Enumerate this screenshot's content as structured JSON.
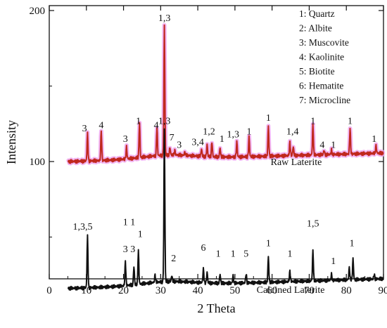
{
  "chart_data": {
    "type": "line",
    "xlabel": "2 Theta",
    "ylabel": "Intensity",
    "xlim": [
      0,
      90
    ],
    "xticks": [
      0,
      10,
      20,
      30,
      40,
      50,
      60,
      70,
      80,
      90
    ],
    "yticks_labeled": [
      100,
      200
    ],
    "legend_position": "top-right",
    "legend": [
      "1: Quartz",
      "2: Albite",
      "3: Muscovite",
      "4: Kaolinite",
      "5: Biotite",
      "6: Hematite",
      "7: Microcline"
    ],
    "series": [
      {
        "name": "Raw Laterite",
        "color": "#c0281e",
        "halo": "#f0a8f0",
        "baseline": 100,
        "end_level": 107,
        "peaks": [
          {
            "x": 10.3,
            "h": 18
          },
          {
            "x": 14.0,
            "h": 20
          },
          {
            "x": 20.8,
            "h": 8
          },
          {
            "x": 24.3,
            "h": 23
          },
          {
            "x": 29.0,
            "h": 19
          },
          {
            "x": 31.0,
            "h": 86
          },
          {
            "x": 32.5,
            "h": 5
          },
          {
            "x": 33.8,
            "h": 3
          },
          {
            "x": 36.5,
            "h": 2
          },
          {
            "x": 41.0,
            "h": 5
          },
          {
            "x": 42.5,
            "h": 8
          },
          {
            "x": 43.8,
            "h": 10
          },
          {
            "x": 46.0,
            "h": 6
          },
          {
            "x": 50.5,
            "h": 10
          },
          {
            "x": 53.8,
            "h": 13
          },
          {
            "x": 59.0,
            "h": 20
          },
          {
            "x": 64.8,
            "h": 9
          },
          {
            "x": 65.7,
            "h": 6
          },
          {
            "x": 71.0,
            "h": 20
          },
          {
            "x": 74.0,
            "h": 3
          },
          {
            "x": 76.0,
            "h": 3
          },
          {
            "x": 81.0,
            "h": 17
          },
          {
            "x": 88.0,
            "h": 5
          }
        ],
        "series_label": "Raw Laterite",
        "peak_labels": [
          {
            "x": 9.5,
            "y": 120,
            "text": "3"
          },
          {
            "x": 14.0,
            "y": 122,
            "text": "4"
          },
          {
            "x": 20.5,
            "y": 113,
            "text": "3"
          },
          {
            "x": 24.0,
            "y": 125,
            "text": "1"
          },
          {
            "x": 28.8,
            "y": 122,
            "text": "4"
          },
          {
            "x": 31.0,
            "y": 193,
            "text": "1,3"
          },
          {
            "x": 33.0,
            "y": 114,
            "text": "7"
          },
          {
            "x": 35.0,
            "y": 109,
            "text": "3"
          },
          {
            "x": 40.0,
            "y": 111,
            "text": "3,4"
          },
          {
            "x": 43.0,
            "y": 118,
            "text": "1,2"
          },
          {
            "x": 46.5,
            "y": 113,
            "text": "1"
          },
          {
            "x": 49.5,
            "y": 116,
            "text": "1,3"
          },
          {
            "x": 53.8,
            "y": 118,
            "text": "1"
          },
          {
            "x": 59.0,
            "y": 127,
            "text": "1"
          },
          {
            "x": 65.5,
            "y": 118,
            "text": "1,4"
          },
          {
            "x": 73.5,
            "y": 109,
            "text": "4"
          },
          {
            "x": 76.5,
            "y": 109,
            "text": "1"
          },
          {
            "x": 71.0,
            "y": 125,
            "text": "1"
          },
          {
            "x": 81.0,
            "y": 125,
            "text": "1"
          },
          {
            "x": 87.5,
            "y": 113,
            "text": "1"
          }
        ]
      },
      {
        "name": "Calcined Laterite",
        "color": "#111111",
        "baseline": 16,
        "end_level": 24,
        "peaks": [
          {
            "x": 10.3,
            "h": 34
          },
          {
            "x": 20.5,
            "h": 16
          },
          {
            "x": 22.8,
            "h": 12
          },
          {
            "x": 24.0,
            "h": 22
          },
          {
            "x": 28.5,
            "h": 5
          },
          {
            "x": 31.0,
            "h": 101
          },
          {
            "x": 33.0,
            "h": 4
          },
          {
            "x": 41.5,
            "h": 9
          },
          {
            "x": 42.5,
            "h": 7
          },
          {
            "x": 46.0,
            "h": 6
          },
          {
            "x": 49.5,
            "h": 5
          },
          {
            "x": 53.0,
            "h": 6
          },
          {
            "x": 59.0,
            "h": 17
          },
          {
            "x": 64.8,
            "h": 7
          },
          {
            "x": 71.0,
            "h": 20
          },
          {
            "x": 76.0,
            "h": 4
          },
          {
            "x": 80.8,
            "h": 8
          },
          {
            "x": 81.8,
            "h": 14
          },
          {
            "x": 87.5,
            "h": 3
          }
        ],
        "series_label": "Calcined Laterite",
        "peak_labels": [
          {
            "x": 9.0,
            "y": 55,
            "text": "1,3,5"
          },
          {
            "x": 20.5,
            "y": 58,
            "text": "1"
          },
          {
            "x": 22.5,
            "y": 58,
            "text": "1"
          },
          {
            "x": 20.5,
            "y": 40,
            "text": "3"
          },
          {
            "x": 22.5,
            "y": 40,
            "text": "3"
          },
          {
            "x": 24.5,
            "y": 50,
            "text": "1"
          },
          {
            "x": 31.0,
            "y": 125,
            "text": "1,3"
          },
          {
            "x": 33.5,
            "y": 34,
            "text": "2"
          },
          {
            "x": 41.5,
            "y": 41,
            "text": "6"
          },
          {
            "x": 45.5,
            "y": 37,
            "text": "1"
          },
          {
            "x": 49.5,
            "y": 37,
            "text": "1"
          },
          {
            "x": 53.0,
            "y": 37,
            "text": "5"
          },
          {
            "x": 59.0,
            "y": 44,
            "text": "1"
          },
          {
            "x": 64.8,
            "y": 37,
            "text": "1"
          },
          {
            "x": 71.0,
            "y": 57,
            "text": "1,5"
          },
          {
            "x": 76.5,
            "y": 32,
            "text": "1"
          },
          {
            "x": 81.5,
            "y": 44,
            "text": "1"
          }
        ]
      }
    ]
  }
}
